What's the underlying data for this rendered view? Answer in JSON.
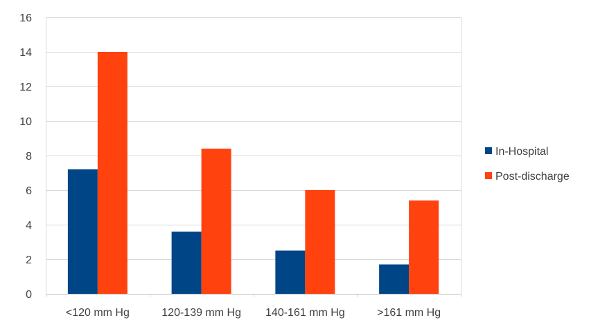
{
  "chart_data": {
    "type": "bar",
    "categories": [
      "<120 mm Hg",
      "120-139 mm Hg",
      "140-161 mm Hg",
      ">161 mm Hg"
    ],
    "series": [
      {
        "name": "In-Hospital",
        "values": [
          7.2,
          3.6,
          2.5,
          1.7
        ],
        "color": "#004586"
      },
      {
        "name": "Post-discharge",
        "values": [
          14.0,
          8.4,
          6.0,
          5.4
        ],
        "color": "#ff420e"
      }
    ],
    "title": "",
    "xlabel": "",
    "ylabel": "",
    "ylim": [
      0,
      16
    ],
    "yticks": [
      0,
      2,
      4,
      6,
      8,
      10,
      12,
      14,
      16
    ],
    "grid": true,
    "legend": "right"
  }
}
